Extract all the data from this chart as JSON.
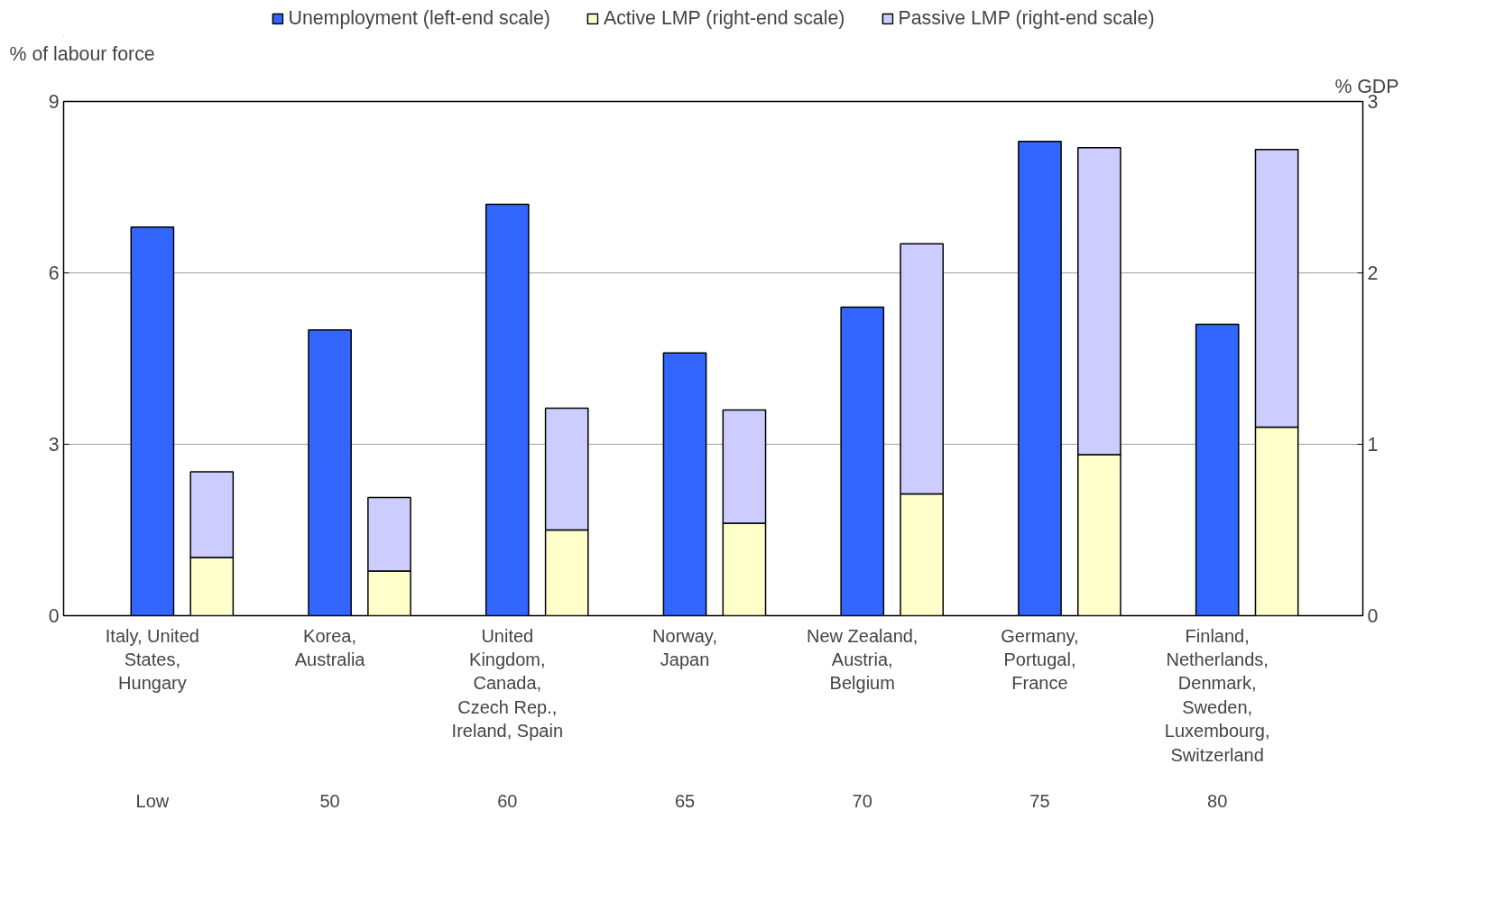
{
  "chart_data": {
    "type": "bar",
    "categories": [
      "Italy, United\nStates,\nHungary",
      "Korea,\nAustralia",
      "United\nKingdom,\nCanada,\nCzech Rep.,\nIreland, Spain",
      "Norway,\nJapan",
      "New Zealand,\nAustria,\nBelgium",
      "Germany,\nPortugal,\nFrance",
      "Finland,\nNetherlands,\nDenmark,\nSweden,\nLuxembourg,\nSwitzerland"
    ],
    "series": [
      {
        "name": "Unemployment (left-end scale)",
        "color": "#3366ff",
        "values": [
          6.8,
          5.0,
          7.2,
          4.6,
          5.4,
          8.3,
          5.1
        ]
      },
      {
        "name": "Active LMP (right-end scale)",
        "color": "#ffffcc",
        "axis": "y2",
        "values": [
          0.34,
          0.26,
          0.5,
          0.54,
          0.71,
          0.94,
          1.1
        ]
      },
      {
        "name": "Passive LMP (right-end scale)",
        "color": "#ccccff",
        "axis": "y2",
        "values": [
          0.5,
          0.43,
          0.71,
          0.66,
          1.46,
          1.79,
          1.62
        ]
      }
    ],
    "stacked": true,
    "ylabel": "% of labour force",
    "y2label": "% GDP",
    "ylim": [
      0,
      9
    ],
    "yticks": [
      0,
      3,
      6,
      9
    ],
    "y2lim": [
      0,
      3
    ],
    "y2ticks": [
      0,
      1,
      2,
      3
    ],
    "grid": "y",
    "legend": "top",
    "annotations": [
      "Low",
      "50",
      "60",
      "65",
      "70",
      "75",
      "80"
    ]
  }
}
